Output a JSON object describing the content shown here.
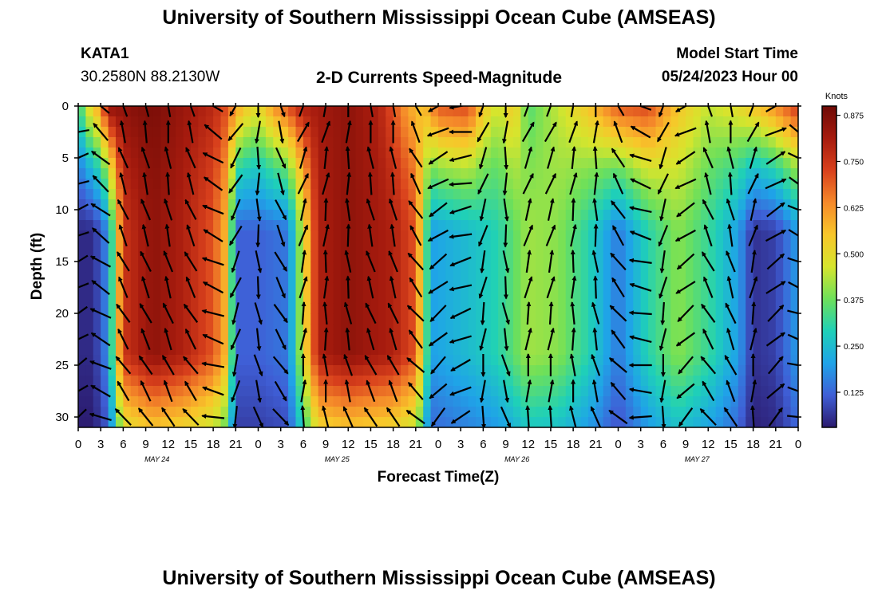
{
  "header": {
    "title": "University of Southern Mississippi Ocean Cube (AMSEAS)",
    "station_id": "KATA1",
    "station_coords": "30.2580N  88.2130W",
    "plot_title": "2-D Currents Speed-Magnitude",
    "model_start_label": "Model Start Time",
    "model_start_value": "05/24/2023 Hour 00",
    "footer_title": "University of Southern Mississippi Ocean Cube (AMSEAS)"
  },
  "chart_data": {
    "type": "heatmap",
    "xlabel": "Forecast Time(Z)",
    "ylabel": "Depth (ft)",
    "x_tick_labels": [
      "0",
      "3",
      "6",
      "9",
      "12",
      "15",
      "18",
      "21",
      "0",
      "3",
      "6",
      "9",
      "12",
      "15",
      "18",
      "21",
      "0",
      "3",
      "6",
      "9",
      "12",
      "15",
      "18",
      "21",
      "0",
      "3",
      "6",
      "9",
      "12",
      "15",
      "18",
      "21",
      "0"
    ],
    "x_range_hours": [
      0,
      96
    ],
    "day_labels": [
      {
        "text": "MAY 24",
        "hour": 10.5
      },
      {
        "text": "MAY 25",
        "hour": 34.5
      },
      {
        "text": "MAY 26",
        "hour": 58.5
      },
      {
        "text": "MAY 27",
        "hour": 82.5
      }
    ],
    "y_ticks": [
      0,
      5,
      10,
      15,
      20,
      25,
      30
    ],
    "y_range": [
      0,
      31
    ],
    "y_inverted": true,
    "colorbar": {
      "unit": "Knots",
      "min": 0.03,
      "max": 0.9,
      "ticks": [
        "0.125",
        "0.250",
        "0.375",
        "0.500",
        "0.625",
        "0.750",
        "0.875"
      ],
      "tick_values": [
        0.125,
        0.25,
        0.375,
        0.5,
        0.625,
        0.75,
        0.875
      ],
      "colormap": [
        "#2b1a6e",
        "#3f5fd6",
        "#1fa3e8",
        "#1fd0b8",
        "#6ee05a",
        "#d6e52d",
        "#f8c62a",
        "#f5892a",
        "#d8401c",
        "#a61b0e",
        "#6e0a06"
      ]
    },
    "speed_field": {
      "note_units": "knots",
      "surface_by_hour": [
        [
          0,
          0.28
        ],
        [
          1,
          0.45
        ],
        [
          2,
          0.55
        ],
        [
          3,
          0.62
        ],
        [
          4,
          0.85
        ],
        [
          6,
          0.85
        ],
        [
          10,
          0.88
        ],
        [
          15,
          0.82
        ],
        [
          18,
          0.78
        ],
        [
          20,
          0.7
        ],
        [
          22,
          0.55
        ],
        [
          24,
          0.5
        ],
        [
          26,
          0.62
        ],
        [
          30,
          0.8
        ],
        [
          36,
          0.85
        ],
        [
          40,
          0.8
        ],
        [
          44,
          0.6
        ],
        [
          46,
          0.55
        ],
        [
          48,
          0.7
        ],
        [
          52,
          0.72
        ],
        [
          54,
          0.55
        ],
        [
          56,
          0.45
        ],
        [
          58,
          0.55
        ],
        [
          60,
          0.35
        ],
        [
          64,
          0.45
        ],
        [
          68,
          0.55
        ],
        [
          72,
          0.7
        ],
        [
          76,
          0.72
        ],
        [
          80,
          0.55
        ],
        [
          84,
          0.45
        ],
        [
          88,
          0.5
        ],
        [
          92,
          0.6
        ],
        [
          96,
          0.75
        ]
      ],
      "deep_by_hour": [
        [
          0,
          0.05
        ],
        [
          2,
          0.05
        ],
        [
          4,
          0.18
        ],
        [
          6,
          0.75
        ],
        [
          10,
          0.85
        ],
        [
          14,
          0.8
        ],
        [
          18,
          0.7
        ],
        [
          20,
          0.55
        ],
        [
          21,
          0.12
        ],
        [
          24,
          0.12
        ],
        [
          28,
          0.15
        ],
        [
          32,
          0.8
        ],
        [
          36,
          0.85
        ],
        [
          42,
          0.8
        ],
        [
          45,
          0.7
        ],
        [
          47,
          0.2
        ],
        [
          52,
          0.25
        ],
        [
          56,
          0.3
        ],
        [
          60,
          0.42
        ],
        [
          64,
          0.4
        ],
        [
          68,
          0.3
        ],
        [
          72,
          0.15
        ],
        [
          76,
          0.3
        ],
        [
          80,
          0.4
        ],
        [
          84,
          0.32
        ],
        [
          88,
          0.2
        ],
        [
          90,
          0.06
        ],
        [
          93,
          0.08
        ],
        [
          96,
          0.2
        ]
      ]
    },
    "vector_field": {
      "description": "current direction arrows (compass degrees, 0 = north/up)",
      "hours": [
        0,
        3,
        6,
        9,
        12,
        15,
        18,
        21,
        24,
        27,
        30,
        33,
        36,
        39,
        42,
        45,
        48,
        51,
        54,
        57,
        60,
        63,
        66,
        69,
        72,
        75,
        78,
        81,
        84,
        87,
        90,
        93,
        96
      ],
      "depths_ft": [
        0,
        2.5,
        5,
        7.5,
        10,
        12.5,
        15,
        17.5,
        20,
        22.5,
        25,
        27.5,
        30
      ],
      "direction_by_hour": [
        [
          0,
          250
        ],
        [
          3,
          310
        ],
        [
          6,
          340
        ],
        [
          9,
          345
        ],
        [
          12,
          350
        ],
        [
          15,
          340
        ],
        [
          18,
          300
        ],
        [
          21,
          210
        ],
        [
          24,
          180
        ],
        [
          27,
          160
        ],
        [
          30,
          20
        ],
        [
          33,
          10
        ],
        [
          36,
          0
        ],
        [
          39,
          350
        ],
        [
          42,
          350
        ],
        [
          45,
          330
        ],
        [
          48,
          240
        ],
        [
          51,
          260
        ],
        [
          54,
          200
        ],
        [
          57,
          180
        ],
        [
          60,
          20
        ],
        [
          63,
          20
        ],
        [
          66,
          10
        ],
        [
          69,
          0
        ],
        [
          72,
          330
        ],
        [
          75,
          290
        ],
        [
          78,
          200
        ],
        [
          81,
          240
        ],
        [
          84,
          340
        ],
        [
          87,
          350
        ],
        [
          90,
          20
        ],
        [
          93,
          60
        ],
        [
          96,
          120
        ]
      ]
    }
  }
}
